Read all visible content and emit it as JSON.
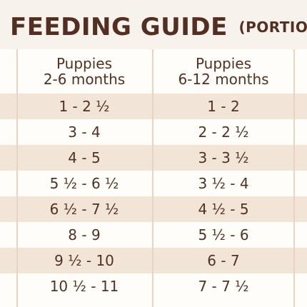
{
  "title": {
    "main": "FEEDING GUIDE",
    "sub": "(PORTIONS PER"
  },
  "columns": [
    {
      "line1": "Puppies",
      "line2": "2-6 months"
    },
    {
      "line1": "Puppies",
      "line2": "6-12 months"
    }
  ],
  "rows": [
    [
      "1 - 2 ½",
      "1 - 2"
    ],
    [
      "3 - 4",
      "2 - 2 ½"
    ],
    [
      "4 - 5",
      "3 - 3 ½"
    ],
    [
      "5 ½ - 6 ½",
      "3 ½ - 4"
    ],
    [
      "6 ½ - 7 ½",
      "4 ½ - 5"
    ],
    [
      "8 - 9",
      "5 ½ - 6"
    ],
    [
      "9 ½ - 10",
      "6 - 7"
    ],
    [
      "10 ½ - 11",
      "7 - 7 ½"
    ]
  ],
  "colors": {
    "text": "#4f3224",
    "alt_row": "#f3e4d8",
    "background": "#fffdf9",
    "title_band": "#f8f2ed",
    "grid": "#e7d4c4"
  }
}
